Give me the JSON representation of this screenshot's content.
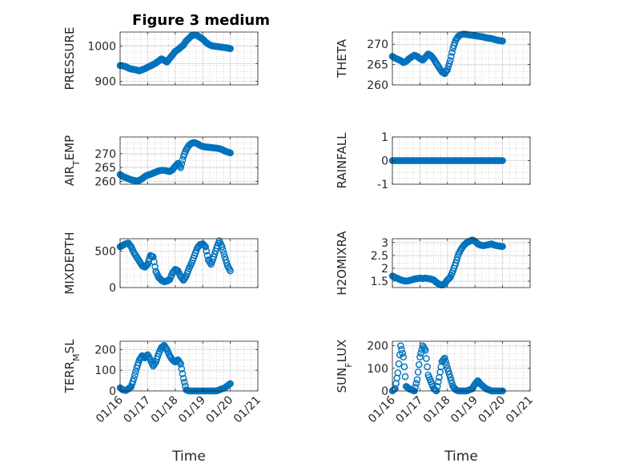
{
  "figure_title": "Figure 3 medium",
  "colors": {
    "marker": "#0072BD",
    "grid": "#b8b8b8",
    "axis": "#262626"
  },
  "chart_data": [
    {
      "id": "pressure",
      "type": "scatter",
      "title": "Figure 3 medium",
      "ylabel": "PRESSURE",
      "ylabel_sub": "",
      "xlim": [
        0,
        5
      ],
      "ylim": [
        890,
        1040
      ],
      "yticks": [
        900,
        950,
        1000
      ],
      "ytick_labels": [
        "900",
        "",
        "1000"
      ],
      "x": [
        0.0,
        0.1,
        0.2,
        0.3,
        0.4,
        0.5,
        0.6,
        0.7,
        0.8,
        0.9,
        1.0,
        1.1,
        1.2,
        1.3,
        1.4,
        1.5,
        1.6,
        1.7,
        1.8,
        1.9,
        2.0,
        2.1,
        2.2,
        2.3,
        2.4,
        2.5,
        2.6,
        2.7,
        2.8,
        2.9,
        3.0,
        3.1,
        3.2,
        3.3,
        3.4,
        3.5,
        3.6,
        3.7,
        3.8,
        3.9,
        4.0
      ],
      "y": [
        945,
        944,
        942,
        938,
        935,
        934,
        932,
        930,
        933,
        936,
        940,
        944,
        948,
        952,
        958,
        964,
        960,
        955,
        965,
        975,
        985,
        990,
        997,
        1003,
        1015,
        1022,
        1030,
        1032,
        1030,
        1025,
        1020,
        1012,
        1006,
        1002,
        1000,
        999,
        998,
        997,
        996,
        995,
        993
      ]
    },
    {
      "id": "theta",
      "type": "scatter",
      "title": "",
      "ylabel": "THETA",
      "ylabel_sub": "",
      "xlim": [
        0,
        5
      ],
      "ylim": [
        260,
        273
      ],
      "yticks": [
        260,
        265,
        270
      ],
      "ytick_labels": [
        "260",
        "265",
        "270"
      ],
      "x": [
        0.0,
        0.1,
        0.2,
        0.3,
        0.4,
        0.5,
        0.6,
        0.7,
        0.8,
        0.9,
        1.0,
        1.1,
        1.2,
        1.3,
        1.4,
        1.5,
        1.6,
        1.7,
        1.8,
        1.9,
        2.0,
        2.1,
        2.2,
        2.3,
        2.4,
        2.5,
        2.6,
        2.7,
        2.8,
        2.9,
        3.0,
        3.1,
        3.2,
        3.3,
        3.4,
        3.5,
        3.6,
        3.7,
        3.8,
        3.9,
        4.0
      ],
      "y": [
        267.0,
        266.6,
        266.3,
        266.0,
        265.5,
        265.8,
        266.4,
        266.9,
        267.3,
        267.0,
        266.5,
        266.1,
        266.8,
        267.6,
        267.2,
        266.4,
        265.3,
        264.2,
        263.2,
        262.8,
        263.8,
        266.0,
        269.0,
        271.0,
        272.0,
        272.4,
        272.5,
        272.4,
        272.3,
        272.2,
        272.1,
        272.0,
        271.9,
        271.8,
        271.6,
        271.5,
        271.4,
        271.2,
        271.0,
        270.9,
        270.8
      ]
    },
    {
      "id": "air_temp",
      "type": "scatter",
      "title": "",
      "ylabel": "AIR",
      "ylabel_sub": "T",
      "ylabel_tail": "EMP",
      "xlim": [
        0,
        5
      ],
      "ylim": [
        259,
        276
      ],
      "yticks": [
        260,
        265,
        270
      ],
      "ytick_labels": [
        "260",
        "265",
        "270"
      ],
      "x": [
        0.0,
        0.1,
        0.2,
        0.3,
        0.4,
        0.5,
        0.6,
        0.7,
        0.8,
        0.9,
        1.0,
        1.1,
        1.2,
        1.3,
        1.4,
        1.5,
        1.6,
        1.7,
        1.8,
        1.9,
        2.0,
        2.1,
        2.2,
        2.3,
        2.4,
        2.5,
        2.6,
        2.7,
        2.8,
        2.9,
        3.0,
        3.1,
        3.2,
        3.3,
        3.4,
        3.5,
        3.6,
        3.7,
        3.8,
        3.9,
        4.0
      ],
      "y": [
        262.5,
        261.8,
        261.4,
        261.0,
        260.6,
        260.4,
        260.2,
        260.4,
        261.0,
        261.8,
        262.3,
        262.6,
        263.0,
        263.4,
        263.8,
        264.0,
        264.0,
        263.8,
        263.6,
        264.2,
        265.5,
        266.5,
        265.0,
        269.0,
        271.5,
        273.0,
        273.8,
        274.0,
        273.6,
        273.0,
        272.6,
        272.4,
        272.3,
        272.2,
        272.1,
        272.0,
        271.8,
        271.5,
        271.0,
        270.6,
        270.3
      ]
    },
    {
      "id": "rainfall",
      "type": "scatter",
      "title": "",
      "ylabel": "RAINFALL",
      "ylabel_sub": "",
      "xlim": [
        0,
        5
      ],
      "ylim": [
        -1,
        1
      ],
      "yticks": [
        -1,
        0,
        1
      ],
      "ytick_labels": [
        "-1",
        "0",
        "1"
      ],
      "x": [
        0.0,
        0.1,
        0.2,
        0.3,
        0.4,
        0.5,
        0.6,
        0.7,
        0.8,
        0.9,
        1.0,
        1.1,
        1.2,
        1.3,
        1.4,
        1.5,
        1.6,
        1.7,
        1.8,
        1.9,
        2.0,
        2.1,
        2.2,
        2.3,
        2.4,
        2.5,
        2.6,
        2.7,
        2.8,
        2.9,
        3.0,
        3.1,
        3.2,
        3.3,
        3.4,
        3.5,
        3.6,
        3.7,
        3.8,
        3.9,
        4.0
      ],
      "y": [
        0,
        0,
        0,
        0,
        0,
        0,
        0,
        0,
        0,
        0,
        0,
        0,
        0,
        0,
        0,
        0,
        0,
        0,
        0,
        0,
        0,
        0,
        0,
        0,
        0,
        0,
        0,
        0,
        0,
        0,
        0,
        0,
        0,
        0,
        0,
        0,
        0,
        0,
        0,
        0,
        0
      ]
    },
    {
      "id": "mixdepth",
      "type": "scatter",
      "title": "",
      "ylabel": "MIXDEPTH",
      "ylabel_sub": "",
      "xlim": [
        0,
        5
      ],
      "ylim": [
        0,
        670
      ],
      "yticks": [
        0,
        500
      ],
      "ytick_labels": [
        "0",
        "500"
      ],
      "x": [
        0.0,
        0.1,
        0.2,
        0.3,
        0.4,
        0.5,
        0.6,
        0.7,
        0.8,
        0.9,
        1.0,
        1.1,
        1.2,
        1.3,
        1.4,
        1.5,
        1.6,
        1.7,
        1.8,
        1.9,
        2.0,
        2.1,
        2.2,
        2.3,
        2.4,
        2.5,
        2.6,
        2.7,
        2.8,
        2.9,
        3.0,
        3.1,
        3.2,
        3.3,
        3.4,
        3.5,
        3.6,
        3.7,
        3.8,
        3.9,
        4.0
      ],
      "y": [
        560,
        580,
        600,
        610,
        560,
        480,
        420,
        360,
        300,
        280,
        320,
        440,
        420,
        220,
        140,
        100,
        80,
        90,
        110,
        200,
        250,
        230,
        150,
        100,
        160,
        260,
        340,
        440,
        540,
        590,
        600,
        560,
        380,
        320,
        420,
        540,
        640,
        560,
        420,
        300,
        230
      ]
    },
    {
      "id": "h2omixra",
      "type": "scatter",
      "title": "",
      "ylabel": "H2OMIXRA",
      "ylabel_sub": "",
      "xlim": [
        0,
        5
      ],
      "ylim": [
        1.25,
        3.15
      ],
      "yticks": [
        1.5,
        2,
        2.5,
        3
      ],
      "ytick_labels": [
        "1.5",
        "2",
        "2.5",
        "3"
      ],
      "x": [
        0.0,
        0.1,
        0.2,
        0.3,
        0.4,
        0.5,
        0.6,
        0.7,
        0.8,
        0.9,
        1.0,
        1.1,
        1.2,
        1.3,
        1.4,
        1.5,
        1.6,
        1.7,
        1.8,
        1.9,
        2.0,
        2.1,
        2.2,
        2.3,
        2.4,
        2.5,
        2.6,
        2.7,
        2.8,
        2.9,
        3.0,
        3.1,
        3.2,
        3.3,
        3.4,
        3.5,
        3.6,
        3.7,
        3.8,
        3.9,
        4.0
      ],
      "y": [
        1.7,
        1.65,
        1.6,
        1.55,
        1.52,
        1.5,
        1.52,
        1.55,
        1.58,
        1.6,
        1.62,
        1.6,
        1.62,
        1.6,
        1.58,
        1.55,
        1.45,
        1.38,
        1.35,
        1.4,
        1.55,
        1.65,
        1.9,
        2.2,
        2.55,
        2.75,
        2.9,
        3.0,
        3.05,
        3.1,
        3.05,
        2.95,
        2.9,
        2.88,
        2.9,
        2.92,
        2.95,
        2.9,
        2.88,
        2.86,
        2.85
      ]
    },
    {
      "id": "terr_msl",
      "type": "scatter",
      "title": "",
      "ylabel": "TERR",
      "ylabel_sub": "M",
      "ylabel_tail": "SL",
      "xlim": [
        0,
        5
      ],
      "ylim": [
        0,
        240
      ],
      "yticks": [
        0,
        100,
        200
      ],
      "ytick_labels": [
        "0",
        "100",
        "200"
      ],
      "x": [
        0.0,
        0.1,
        0.2,
        0.3,
        0.4,
        0.5,
        0.6,
        0.7,
        0.8,
        0.9,
        1.0,
        1.1,
        1.2,
        1.3,
        1.4,
        1.5,
        1.6,
        1.7,
        1.8,
        1.9,
        2.0,
        2.1,
        2.2,
        2.3,
        2.4,
        2.5,
        2.6,
        2.7,
        2.8,
        2.9,
        3.0,
        3.1,
        3.2,
        3.3,
        3.4,
        3.5,
        3.6,
        3.7,
        3.8,
        3.9,
        4.0
      ],
      "y": [
        15,
        5,
        2,
        10,
        20,
        60,
        110,
        150,
        170,
        160,
        175,
        150,
        120,
        140,
        180,
        210,
        220,
        200,
        170,
        150,
        140,
        150,
        130,
        60,
        5,
        0,
        0,
        0,
        0,
        0,
        0,
        0,
        0,
        0,
        0,
        0,
        5,
        10,
        15,
        25,
        35
      ]
    },
    {
      "id": "sun_flux",
      "type": "scatter",
      "title": "",
      "ylabel": "SUN",
      "ylabel_sub": "F",
      "ylabel_tail": "LUX",
      "xlim": [
        0,
        5
      ],
      "ylim": [
        0,
        220
      ],
      "yticks": [
        0,
        100,
        200
      ],
      "ytick_labels": [
        "0",
        "100",
        "200"
      ],
      "x": [
        0.0,
        0.1,
        0.2,
        0.3,
        0.4,
        0.5,
        0.6,
        0.7,
        0.8,
        0.9,
        1.0,
        1.1,
        1.2,
        1.3,
        1.4,
        1.5,
        1.6,
        1.7,
        1.8,
        1.9,
        2.0,
        2.1,
        2.2,
        2.3,
        2.4,
        2.5,
        2.6,
        2.7,
        2.8,
        2.9,
        3.0,
        3.1,
        3.2,
        3.3,
        3.4,
        3.5,
        3.6,
        3.7,
        3.8,
        3.9,
        4.0
      ],
      "y": [
        0,
        10,
        80,
        200,
        150,
        20,
        10,
        5,
        0,
        50,
        150,
        200,
        180,
        70,
        40,
        10,
        0,
        60,
        130,
        145,
        100,
        60,
        20,
        5,
        0,
        0,
        0,
        0,
        5,
        10,
        30,
        45,
        30,
        20,
        10,
        5,
        0,
        0,
        0,
        0,
        0
      ]
    }
  ],
  "x_axis": {
    "label": "Time",
    "ticks": [
      0,
      1,
      2,
      3,
      4,
      5
    ],
    "tick_labels": [
      "01/16",
      "01/17",
      "01/18",
      "01/19",
      "01/20",
      "01/21"
    ]
  }
}
